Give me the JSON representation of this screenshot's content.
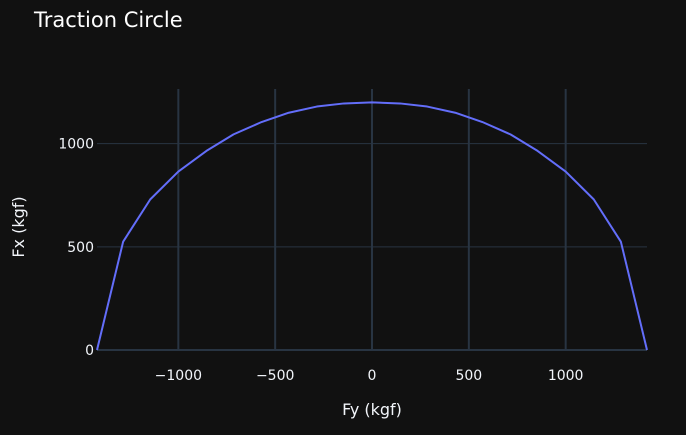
{
  "chart_data": {
    "type": "line",
    "title": "Traction Circle",
    "xlabel": "Fy (kgf)",
    "ylabel": "Fx (kgf)",
    "xlim": [
      -1420,
      1420
    ],
    "ylim": [
      0,
      1265
    ],
    "xticks": [
      -1000,
      -500,
      0,
      500,
      1000
    ],
    "xtick_labels": [
      "−1000",
      "−500",
      "0",
      "500",
      "1000"
    ],
    "yticks": [
      0,
      500,
      1000
    ],
    "ytick_labels": [
      "0",
      "500",
      "1000"
    ],
    "grid": true,
    "legend": "none",
    "series": [
      {
        "color": "#636efa",
        "x": [
          -1420,
          -1285,
          -1145,
          -1000,
          -855,
          -715,
          -570,
          -430,
          -285,
          -145,
          0,
          145,
          285,
          430,
          570,
          715,
          855,
          1000,
          1145,
          1285,
          1420
        ],
        "y": [
          0,
          525,
          730,
          865,
          965,
          1045,
          1105,
          1150,
          1180,
          1195,
          1200,
          1195,
          1180,
          1150,
          1105,
          1045,
          965,
          865,
          730,
          525,
          0
        ]
      }
    ]
  },
  "colors": {
    "background": "#111111",
    "grid": "#283442",
    "text": "#f2f5fa",
    "line": "#636efa"
  }
}
